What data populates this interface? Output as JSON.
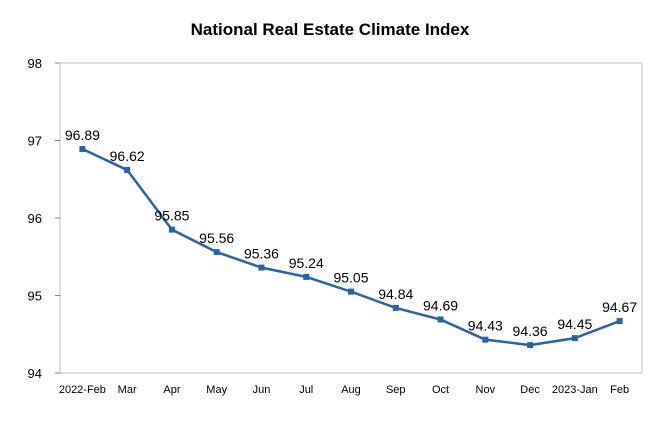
{
  "chart_data": {
    "type": "line",
    "title": "National Real Estate Climate Index",
    "categories": [
      "2022-Feb",
      "Mar",
      "Apr",
      "May",
      "Jun",
      "Jul",
      "Aug",
      "Sep",
      "Oct",
      "Nov",
      "Dec",
      "2023-Jan",
      "Feb"
    ],
    "series": [
      {
        "values": [
          96.89,
          96.62,
          95.85,
          95.56,
          95.36,
          95.24,
          95.05,
          94.84,
          94.69,
          94.43,
          94.36,
          94.45,
          94.67
        ]
      }
    ],
    "y_ticks": [
      "94",
      "95",
      "96",
      "97",
      "98"
    ],
    "data_labels": [
      "96.89",
      "96.62",
      "95.85",
      "95.56",
      "95.36",
      "95.24",
      "95.05",
      "94.84",
      "94.69",
      "94.43",
      "94.36",
      "94.45",
      "94.67"
    ],
    "ylim": [
      94,
      98
    ],
    "xlabel": "",
    "ylabel": "",
    "grid": false,
    "line_color": "#2563b0",
    "marker": "square"
  }
}
